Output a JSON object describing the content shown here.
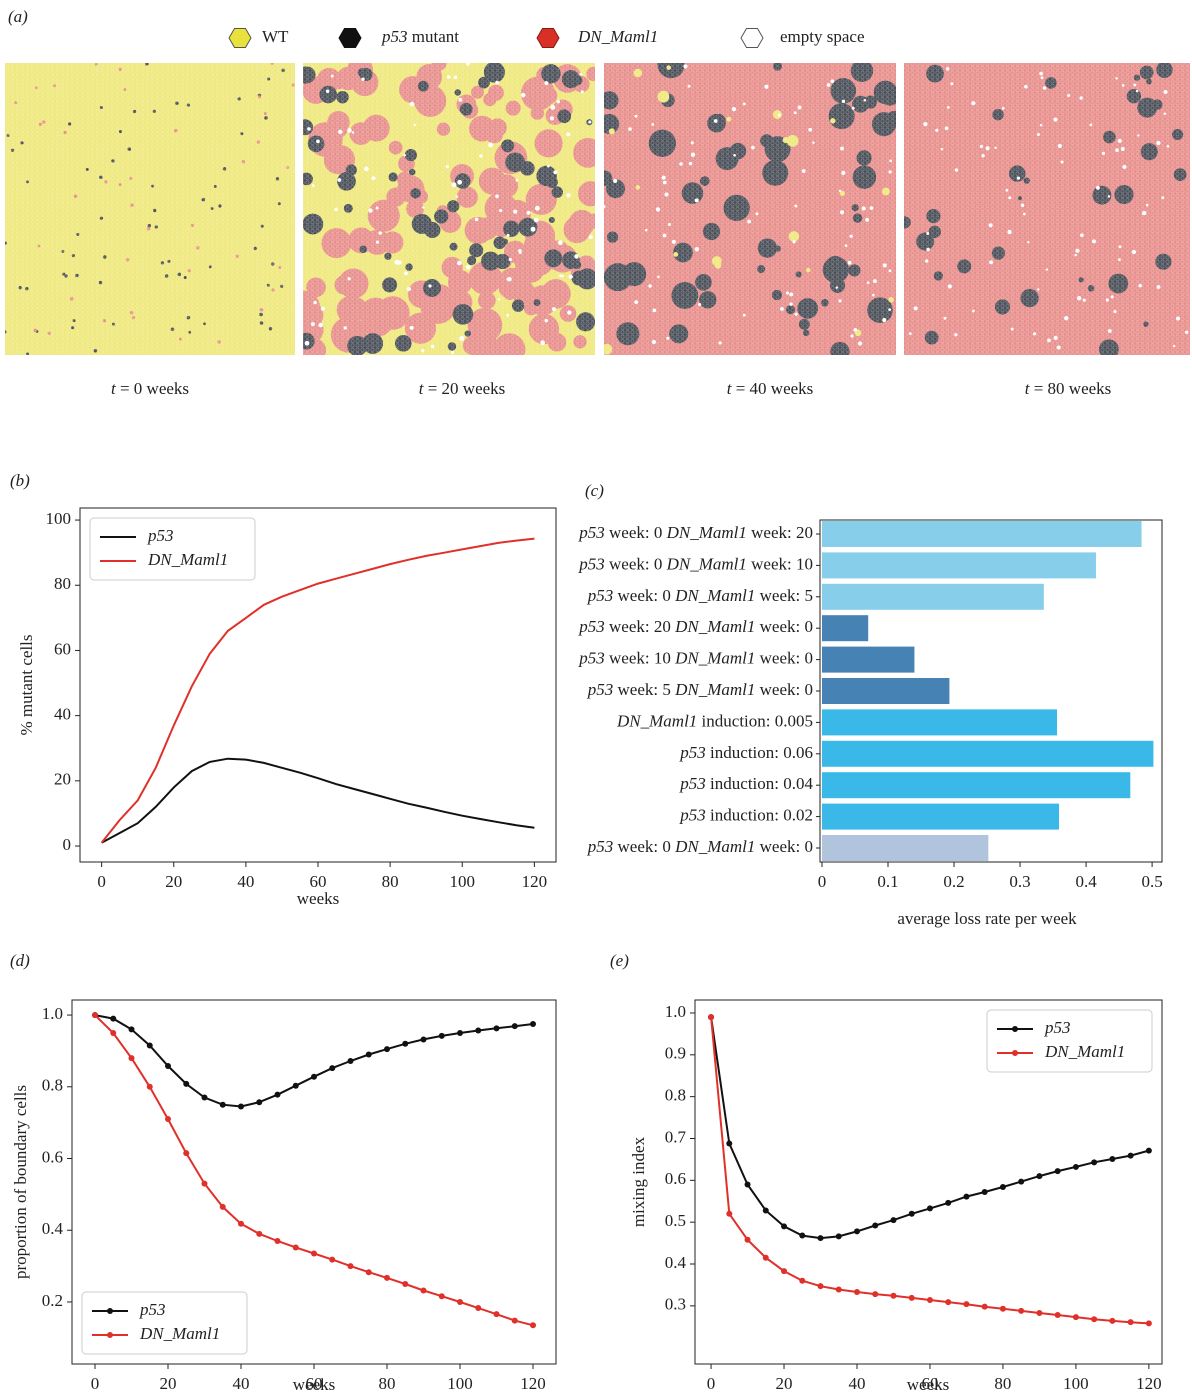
{
  "figure": {
    "panel_a": {
      "label": "(a)",
      "legend": [
        "WT",
        "p53 mutant",
        "DN_Maml1",
        "empty space"
      ],
      "captions": [
        "t = 0 weeks",
        "t = 20 weeks",
        "t = 40 weeks",
        "t = 80 weeks"
      ]
    }
  },
  "chart_data": [
    {
      "type": "line",
      "panel_label": "(b)",
      "x_label": "weeks",
      "y_label": "% mutant cells",
      "x": [
        0,
        5,
        10,
        15,
        20,
        25,
        30,
        35,
        40,
        45,
        50,
        55,
        60,
        65,
        70,
        75,
        80,
        85,
        90,
        95,
        100,
        105,
        110,
        115,
        120
      ],
      "series": [
        {
          "name": "p53",
          "color": "#111111",
          "values": [
            1,
            4,
            7,
            12,
            18,
            23,
            25.8,
            26.8,
            26.5,
            25.5,
            24,
            22.5,
            20.8,
            19,
            17.5,
            16,
            14.5,
            13,
            11.8,
            10.5,
            9.3,
            8.3,
            7.3,
            6.4,
            5.6
          ]
        },
        {
          "name": "DN_Maml1",
          "color": "#e0302a",
          "values": [
            1,
            8,
            14,
            24,
            37,
            49,
            59,
            66,
            70,
            74,
            76.5,
            78.5,
            80.5,
            82,
            83.5,
            85,
            86.5,
            87.8,
            89,
            90,
            91,
            92,
            93,
            93.7,
            94.3
          ]
        }
      ],
      "xlim": [
        -6,
        126
      ],
      "ylim": [
        -4.9,
        103.7
      ],
      "xticks": [
        0,
        20,
        40,
        60,
        80,
        100,
        120
      ],
      "yticks": [
        0,
        20,
        40,
        60,
        80,
        100
      ],
      "markers": false,
      "legend": "upper left"
    },
    {
      "type": "barh",
      "panel_label": "(c)",
      "x_label": "average loss rate per week",
      "categories": [
        "p53 week: 0 DN_Maml1 week: 20",
        "p53 week: 0 DN_Maml1 week: 10",
        "p53 week: 0 DN_Maml1 week: 5",
        "p53 week: 20 DN_Maml1 week: 0",
        "p53 week: 10 DN_Maml1 week: 0",
        "p53 week: 5 DN_Maml1 week: 0",
        "DN_Maml1 induction: 0.005",
        "p53 induction: 0.06",
        "p53 induction: 0.04",
        "p53 induction: 0.02",
        "p53 week: 0 DN_Maml1 week: 0"
      ],
      "values": [
        0.484,
        0.415,
        0.336,
        0.07,
        0.14,
        0.193,
        0.356,
        0.502,
        0.467,
        0.359,
        0.252
      ],
      "colors": [
        "#87ceeb",
        "#87ceeb",
        "#87ceeb",
        "#4682b4",
        "#4682b4",
        "#4682b4",
        "#3ab9e9",
        "#3ab9e9",
        "#3ab9e9",
        "#3ab9e9",
        "#b0c4de"
      ],
      "xlim": [
        -0.003,
        0.515
      ],
      "xticks": [
        0,
        0.1,
        0.2,
        0.3,
        0.4,
        0.5
      ]
    },
    {
      "type": "line",
      "panel_label": "(d)",
      "x_label": "weeks",
      "y_label": "proportion of boundary cells",
      "x": [
        0,
        5,
        10,
        15,
        20,
        25,
        30,
        35,
        40,
        45,
        50,
        55,
        60,
        65,
        70,
        75,
        80,
        85,
        90,
        95,
        100,
        105,
        110,
        115,
        120
      ],
      "series": [
        {
          "name": "p53",
          "color": "#111111",
          "values": [
            1.0,
            0.99,
            0.96,
            0.915,
            0.858,
            0.808,
            0.77,
            0.75,
            0.745,
            0.757,
            0.778,
            0.803,
            0.828,
            0.852,
            0.872,
            0.89,
            0.905,
            0.92,
            0.932,
            0.942,
            0.95,
            0.957,
            0.963,
            0.969,
            0.975
          ]
        },
        {
          "name": "DN_Maml1",
          "color": "#e0302a",
          "values": [
            1.0,
            0.95,
            0.88,
            0.8,
            0.71,
            0.615,
            0.53,
            0.465,
            0.418,
            0.39,
            0.37,
            0.352,
            0.335,
            0.318,
            0.3,
            0.283,
            0.267,
            0.25,
            0.232,
            0.216,
            0.2,
            0.183,
            0.166,
            0.148,
            0.135
          ]
        }
      ],
      "xlim": [
        -6.3,
        126.3
      ],
      "ylim": [
        0.027,
        1.042
      ],
      "xticks": [
        0,
        20,
        40,
        60,
        80,
        100,
        120
      ],
      "yticks": [
        0.2,
        0.4,
        0.6,
        0.8,
        {
          "value": 1,
          "label": "1.0"
        }
      ],
      "markers": true,
      "legend": "lower left"
    },
    {
      "type": "line",
      "panel_label": "(e)",
      "x_label": "weeks",
      "y_label": "mixing index",
      "x": [
        0,
        5,
        10,
        15,
        20,
        25,
        30,
        35,
        40,
        45,
        50,
        55,
        60,
        65,
        70,
        75,
        80,
        85,
        90,
        95,
        100,
        105,
        110,
        115,
        120
      ],
      "series": [
        {
          "name": "p53",
          "color": "#111111",
          "values": [
            0.99,
            0.688,
            0.59,
            0.528,
            0.49,
            0.468,
            0.462,
            0.466,
            0.478,
            0.492,
            0.505,
            0.52,
            0.533,
            0.546,
            0.561,
            0.572,
            0.584,
            0.597,
            0.61,
            0.622,
            0.632,
            0.643,
            0.651,
            0.659,
            0.671
          ]
        },
        {
          "name": "DN_Maml1",
          "color": "#e0302a",
          "values": [
            0.99,
            0.52,
            0.458,
            0.415,
            0.383,
            0.36,
            0.347,
            0.339,
            0.333,
            0.328,
            0.324,
            0.319,
            0.314,
            0.309,
            0.304,
            0.298,
            0.293,
            0.288,
            0.283,
            0.278,
            0.273,
            0.268,
            0.264,
            0.261,
            0.258
          ]
        }
      ],
      "xlim": [
        -4.4,
        123.6
      ],
      "ylim": [
        0.161,
        1.031
      ],
      "xticks": [
        0,
        20,
        40,
        60,
        80,
        100,
        120
      ],
      "yticks": [
        0.3,
        0.4,
        0.5,
        0.6,
        0.7,
        0.8,
        0.9,
        {
          "value": 1,
          "label": "1.0"
        }
      ],
      "markers": true,
      "legend": "upper right"
    }
  ]
}
